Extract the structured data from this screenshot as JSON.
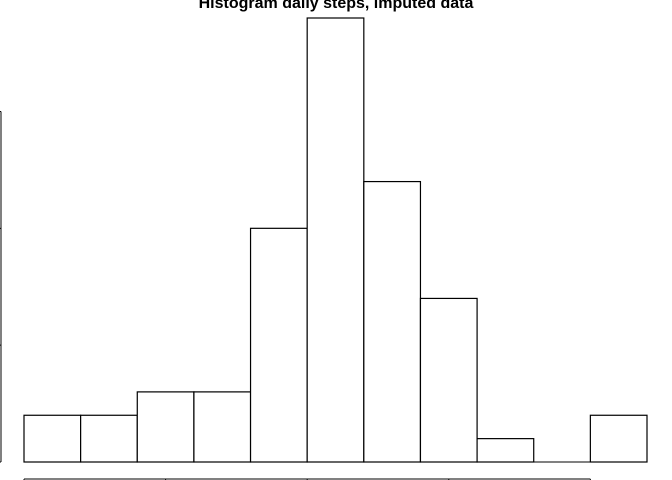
{
  "chart_data": {
    "type": "bar",
    "title": "Histogram daily steps, imputed data",
    "xlabel": "",
    "ylabel": "",
    "bin_width": 2000,
    "x_range": [
      0,
      22000
    ],
    "bins": [
      {
        "start": 0,
        "end": 2000,
        "count": 2
      },
      {
        "start": 2000,
        "end": 4000,
        "count": 2
      },
      {
        "start": 4000,
        "end": 6000,
        "count": 3
      },
      {
        "start": 6000,
        "end": 8000,
        "count": 3
      },
      {
        "start": 8000,
        "end": 10000,
        "count": 10
      },
      {
        "start": 10000,
        "end": 12000,
        "count": 19
      },
      {
        "start": 12000,
        "end": 14000,
        "count": 12
      },
      {
        "start": 14000,
        "end": 16000,
        "count": 7
      },
      {
        "start": 16000,
        "end": 18000,
        "count": 1
      },
      {
        "start": 18000,
        "end": 20000,
        "count": 0
      },
      {
        "start": 20000,
        "end": 22000,
        "count": 2
      }
    ],
    "ylim": [
      0,
      19
    ],
    "y_ticks": [
      0,
      5,
      10,
      15
    ],
    "x_ticks": [
      0,
      5000,
      10000,
      15000,
      20000
    ],
    "grid": false,
    "legend": "none"
  }
}
